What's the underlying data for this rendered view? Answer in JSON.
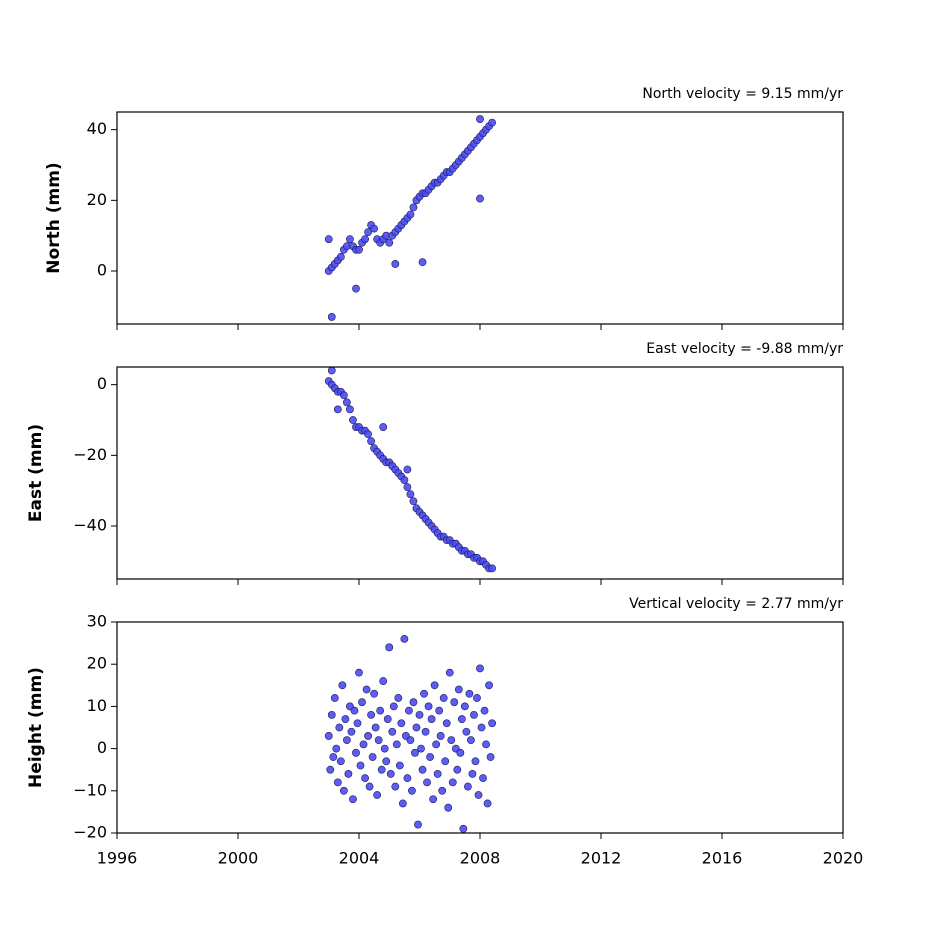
{
  "chart_data": [
    {
      "type": "scatter",
      "title": "North velocity = 9.15 mm/yr",
      "ylabel": "North (mm)",
      "color": "#4b4bf5",
      "edgecolor": "#1c1c50",
      "xlim": [
        1996,
        2020
      ],
      "xticks": [
        1996,
        2000,
        2004,
        2008,
        2012,
        2016,
        2020
      ],
      "ylim": [
        -15,
        45
      ],
      "yticks": [
        0,
        20,
        40
      ],
      "x": [
        2003.0,
        2003.1,
        2003.2,
        2003.3,
        2003.4,
        2003.5,
        2003.6,
        2003.7,
        2003.8,
        2003.9,
        2004.0,
        2004.1,
        2004.2,
        2004.3,
        2004.4,
        2004.5,
        2004.6,
        2004.7,
        2004.8,
        2004.9,
        2005.0,
        2005.1,
        2005.2,
        2005.3,
        2005.4,
        2005.5,
        2005.6,
        2005.7,
        2005.8,
        2005.9,
        2006.0,
        2006.1,
        2006.2,
        2006.3,
        2006.4,
        2006.5,
        2006.6,
        2006.7,
        2006.8,
        2006.9,
        2007.0,
        2007.1,
        2007.2,
        2007.3,
        2007.4,
        2007.5,
        2007.6,
        2007.7,
        2007.8,
        2007.9,
        2008.0,
        2008.1,
        2008.2,
        2008.3,
        2008.4,
        2003.0,
        2003.1,
        2003.9,
        2005.2,
        2006.1,
        2008.0,
        2008.0
      ],
      "y": [
        0,
        1,
        2,
        3,
        4,
        6,
        7,
        9,
        7,
        6,
        6,
        8,
        9,
        11,
        13,
        12,
        9,
        8,
        9,
        10,
        8,
        10,
        11,
        12,
        13,
        14,
        15,
        16,
        18,
        20,
        21,
        22,
        22,
        23,
        24,
        25,
        25,
        26,
        27,
        28,
        28,
        29,
        30,
        31,
        32,
        33,
        34,
        35,
        36,
        37,
        38,
        39,
        40,
        41,
        42,
        9,
        -13,
        -5,
        2,
        2.5,
        20.5,
        43
      ]
    },
    {
      "type": "scatter",
      "title": "East velocity = -9.88 mm/yr",
      "ylabel": "East (mm)",
      "color": "#4b4bf5",
      "edgecolor": "#1c1c50",
      "xlim": [
        1996,
        2020
      ],
      "xticks": [
        1996,
        2000,
        2004,
        2008,
        2012,
        2016,
        2020
      ],
      "ylim": [
        -55,
        5
      ],
      "yticks": [
        {
          "value": -40,
          "label": "−40"
        },
        {
          "value": -20,
          "label": "−20"
        },
        0
      ],
      "x": [
        2003.0,
        2003.1,
        2003.2,
        2003.3,
        2003.4,
        2003.5,
        2003.6,
        2003.7,
        2003.8,
        2003.9,
        2004.0,
        2004.1,
        2004.2,
        2004.3,
        2004.4,
        2004.5,
        2004.6,
        2004.7,
        2004.8,
        2004.9,
        2005.0,
        2005.1,
        2005.2,
        2005.3,
        2005.4,
        2005.5,
        2005.6,
        2005.7,
        2005.8,
        2005.9,
        2006.0,
        2006.1,
        2006.2,
        2006.3,
        2006.4,
        2006.5,
        2006.6,
        2006.7,
        2006.8,
        2006.9,
        2007.0,
        2007.1,
        2007.2,
        2007.3,
        2007.4,
        2007.5,
        2007.6,
        2007.7,
        2007.8,
        2007.9,
        2008.0,
        2008.1,
        2008.2,
        2008.3,
        2008.4,
        2003.1,
        2003.3,
        2004.8,
        2005.6
      ],
      "y": [
        1,
        0,
        -1,
        -2,
        -2,
        -3,
        -5,
        -7,
        -10,
        -12,
        -12,
        -13,
        -13,
        -14,
        -16,
        -18,
        -19,
        -20,
        -21,
        -22,
        -22,
        -23,
        -24,
        -25,
        -26,
        -27,
        -29,
        -31,
        -33,
        -35,
        -36,
        -37,
        -38,
        -39,
        -40,
        -41,
        -42,
        -43,
        -43,
        -44,
        -44,
        -45,
        -45,
        -46,
        -47,
        -47,
        -48,
        -48,
        -49,
        -49,
        -50,
        -50,
        -51,
        -52,
        -52,
        4,
        -7,
        -12,
        -24
      ]
    },
    {
      "type": "scatter",
      "title": "Vertical velocity = 2.77 mm/yr",
      "ylabel": "Height (mm)",
      "color": "#4b4bf5",
      "edgecolor": "#1c1c50",
      "xlim": [
        1996,
        2020
      ],
      "xticks": [
        1996,
        2000,
        2004,
        2008,
        2012,
        2016,
        2020
      ],
      "ylim": [
        -20,
        30
      ],
      "yticks": [
        {
          "value": -20,
          "label": "−20"
        },
        {
          "value": -10,
          "label": "−10"
        },
        0,
        10,
        20,
        30
      ],
      "x": [
        2003.0,
        2003.05,
        2003.1,
        2003.15,
        2003.2,
        2003.25,
        2003.3,
        2003.35,
        2003.4,
        2003.45,
        2003.5,
        2003.55,
        2003.6,
        2003.65,
        2003.7,
        2003.75,
        2003.8,
        2003.85,
        2003.9,
        2003.95,
        2004.0,
        2004.05,
        2004.1,
        2004.15,
        2004.2,
        2004.25,
        2004.3,
        2004.35,
        2004.4,
        2004.45,
        2004.5,
        2004.55,
        2004.6,
        2004.65,
        2004.7,
        2004.75,
        2004.8,
        2004.85,
        2004.9,
        2004.95,
        2005.0,
        2005.05,
        2005.1,
        2005.15,
        2005.2,
        2005.25,
        2005.3,
        2005.35,
        2005.4,
        2005.45,
        2005.5,
        2005.55,
        2005.6,
        2005.65,
        2005.7,
        2005.75,
        2005.8,
        2005.85,
        2005.9,
        2005.95,
        2006.0,
        2006.05,
        2006.1,
        2006.15,
        2006.2,
        2006.25,
        2006.3,
        2006.35,
        2006.4,
        2006.45,
        2006.5,
        2006.55,
        2006.6,
        2006.65,
        2006.7,
        2006.75,
        2006.8,
        2006.85,
        2006.9,
        2006.95,
        2007.0,
        2007.05,
        2007.1,
        2007.15,
        2007.2,
        2007.25,
        2007.3,
        2007.35,
        2007.4,
        2007.45,
        2007.5,
        2007.55,
        2007.6,
        2007.65,
        2007.7,
        2007.75,
        2007.8,
        2007.85,
        2007.9,
        2007.95,
        2008.0,
        2008.05,
        2008.1,
        2008.15,
        2008.2,
        2008.25,
        2008.3,
        2008.35,
        2008.4
      ],
      "y": [
        3,
        -5,
        8,
        -2,
        12,
        0,
        -8,
        5,
        -3,
        15,
        -10,
        7,
        2,
        -6,
        10,
        4,
        -12,
        9,
        -1,
        6,
        18,
        -4,
        11,
        1,
        -7,
        14,
        3,
        -9,
        8,
        -2,
        13,
        5,
        -11,
        2,
        9,
        -5,
        16,
        0,
        -3,
        7,
        24,
        -6,
        4,
        10,
        -9,
        1,
        12,
        -4,
        6,
        -13,
        26,
        3,
        -7,
        9,
        2,
        -10,
        11,
        -1,
        5,
        -18,
        8,
        0,
        -5,
        13,
        4,
        -8,
        10,
        -2,
        7,
        -12,
        15,
        1,
        -6,
        9,
        3,
        -10,
        12,
        -3,
        6,
        -14,
        18,
        2,
        -8,
        11,
        0,
        -5,
        14,
        -1,
        7,
        -19,
        10,
        4,
        -9,
        13,
        2,
        -6,
        8,
        -3,
        12,
        -11,
        19,
        5,
        -7,
        9,
        1,
        -13,
        15,
        -2,
        6
      ]
    }
  ]
}
